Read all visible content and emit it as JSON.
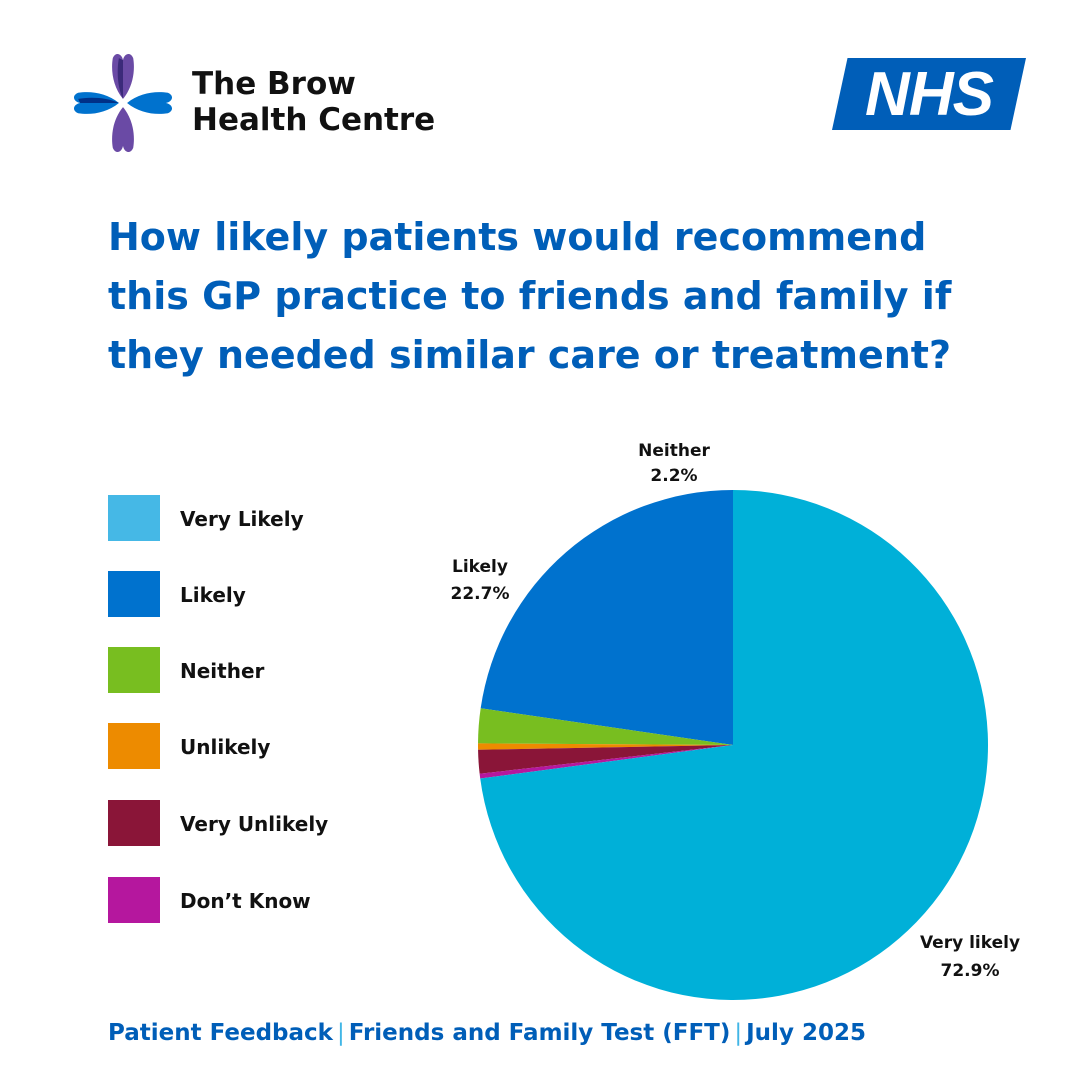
{
  "header": {
    "org_name_line1": "The Brow",
    "org_name_line2": "Health Centre",
    "nhs_logo_text": "NHS"
  },
  "question": "How likely patients would recommend this GP practice to friends and family if they needed similar care or treatment?",
  "legend": [
    {
      "label": "Very Likely",
      "color": "#45b8e6"
    },
    {
      "label": "Likely",
      "color": "#0072ce"
    },
    {
      "label": "Neither",
      "color": "#78be20"
    },
    {
      "label": "Unlikely",
      "color": "#ed8b00"
    },
    {
      "label": "Very Unlikely",
      "color": "#8a1538"
    },
    {
      "label": "Don’t Know",
      "color": "#b5179e"
    }
  ],
  "chart_data": {
    "type": "pie",
    "categories": [
      "Very likely",
      "Likely",
      "Neither",
      "Unlikely",
      "Very Unlikely",
      "Don’t Know"
    ],
    "values": [
      72.9,
      22.7,
      2.2,
      0.4,
      1.5,
      0.3
    ],
    "colors": [
      "#00b0d8",
      "#0072ce",
      "#78be20",
      "#ed8b00",
      "#8a1538",
      "#b5179e"
    ],
    "slice_labels": [
      {
        "name": "Very likely",
        "value": "72.9%"
      },
      {
        "name": "Likely",
        "value": "22.7%"
      },
      {
        "name": "Neither",
        "value": "2.2%"
      }
    ]
  },
  "footer": {
    "part1": "Patient Feedback",
    "part2": "Friends and Family Test (FFT)",
    "part3": "July 2025",
    "separator": "|"
  }
}
